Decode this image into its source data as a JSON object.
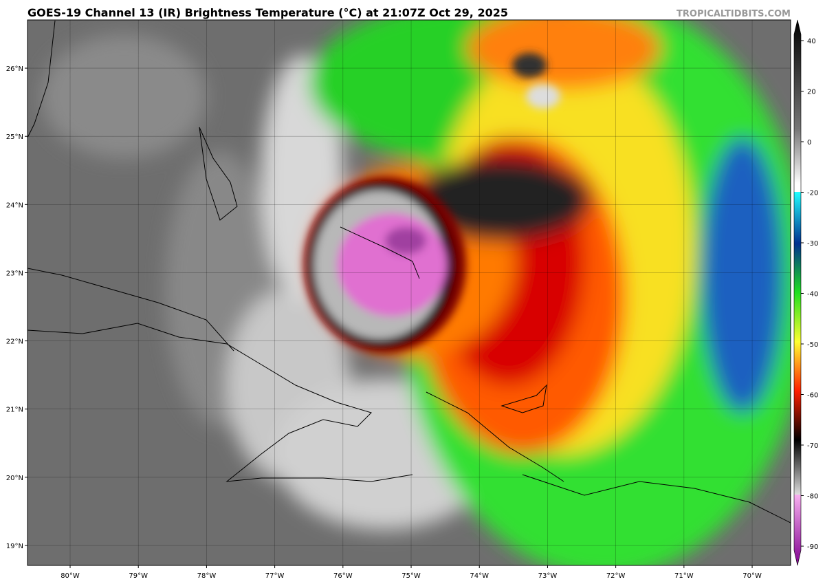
{
  "title": "GOES-19 Channel 13 (IR) Brightness Temperature (°C) at 21:07Z Oct 29, 2025",
  "watermark": "TROPICALTIDBITS.COM",
  "map": {
    "lonlim": [
      -80.625,
      -69.436
    ],
    "latlim": [
      18.707,
      26.707
    ],
    "lon_ticks": [
      {
        "value": -80,
        "label": "80°W"
      },
      {
        "value": -79,
        "label": "79°W"
      },
      {
        "value": -78,
        "label": "78°W"
      },
      {
        "value": -77,
        "label": "77°W"
      },
      {
        "value": -76,
        "label": "76°W"
      },
      {
        "value": -75,
        "label": "75°W"
      },
      {
        "value": -74,
        "label": "74°W"
      },
      {
        "value": -73,
        "label": "73°W"
      },
      {
        "value": -72,
        "label": "72°W"
      },
      {
        "value": -71,
        "label": "71°W"
      },
      {
        "value": -70,
        "label": "70°W"
      }
    ],
    "lat_ticks": [
      {
        "value": 26,
        "label": "26°N"
      },
      {
        "value": 25,
        "label": "25°N"
      },
      {
        "value": 24,
        "label": "24°N"
      },
      {
        "value": 23,
        "label": "23°N"
      },
      {
        "value": 22,
        "label": "22°N"
      },
      {
        "value": 21,
        "label": "21°N"
      },
      {
        "value": 20,
        "label": "20°N"
      },
      {
        "value": 19,
        "label": "19°N"
      }
    ]
  },
  "colorbar": {
    "ticks": [
      40,
      20,
      0,
      -20,
      -30,
      -40,
      -50,
      -60,
      -70,
      -80,
      -90
    ]
  }
}
